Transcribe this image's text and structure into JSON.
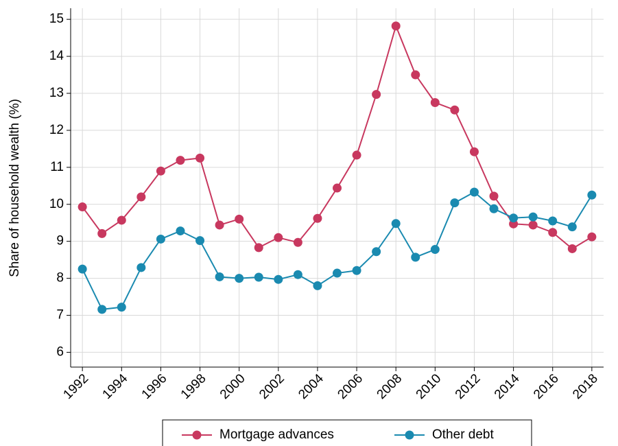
{
  "chart_data": {
    "type": "line",
    "y_label": "Share of household wealth (%)",
    "x": [
      1992,
      1993,
      1994,
      1995,
      1996,
      1997,
      1998,
      1999,
      2000,
      2001,
      2002,
      2003,
      2004,
      2005,
      2006,
      2007,
      2008,
      2009,
      2010,
      2011,
      2012,
      2013,
      2014,
      2015,
      2016,
      2017,
      2018
    ],
    "series": [
      {
        "name": "Mortgage advances",
        "color": "#c8385f",
        "values": [
          9.93,
          9.21,
          9.57,
          10.2,
          10.9,
          11.19,
          11.25,
          9.44,
          9.6,
          8.83,
          9.1,
          8.97,
          9.62,
          10.44,
          11.33,
          12.97,
          14.82,
          13.5,
          12.75,
          12.55,
          11.42,
          10.22,
          9.47,
          9.44,
          9.24,
          8.8,
          9.12
        ]
      },
      {
        "name": "Other debt",
        "color": "#1a8ab0",
        "values": [
          8.25,
          7.16,
          7.22,
          8.29,
          9.06,
          9.28,
          9.02,
          8.04,
          8.0,
          8.03,
          7.97,
          8.1,
          7.8,
          8.14,
          8.21,
          8.72,
          9.48,
          8.57,
          8.78,
          10.04,
          10.33,
          9.88,
          9.63,
          9.66,
          9.55,
          9.39,
          10.25
        ]
      }
    ],
    "xlim": [
      1991.4,
      2018.6
    ],
    "xticks": [
      1992,
      1994,
      1996,
      1998,
      2000,
      2002,
      2004,
      2006,
      2008,
      2010,
      2012,
      2014,
      2016,
      2018
    ],
    "ylim": [
      5.6,
      15.3
    ],
    "yticks": [
      6,
      7,
      8,
      9,
      10,
      11,
      12,
      13,
      14,
      15
    ],
    "grid": true,
    "legend": "bottom"
  }
}
